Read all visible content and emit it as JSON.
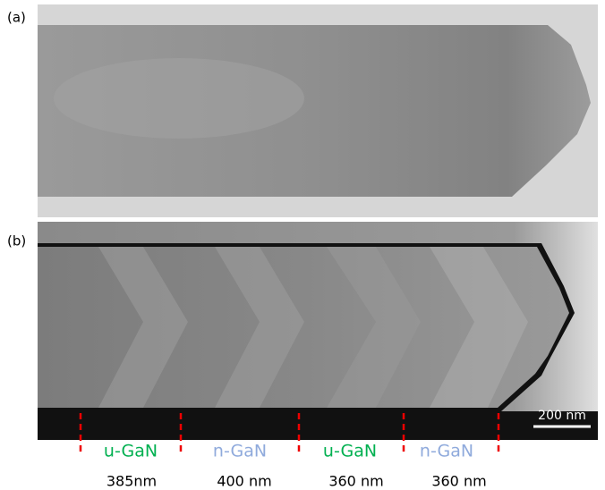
{
  "panels": [
    {
      "label": "(a)"
    },
    {
      "label": "(b)"
    }
  ],
  "scale_bar": "200 nm",
  "segments": [
    {
      "name": "u-GaN",
      "length": "385nm",
      "color": "#00b050"
    },
    {
      "name": "n-GaN",
      "length": "400 nm",
      "color": "#8faadc"
    },
    {
      "name": "u-GaN",
      "length": "360 nm",
      "color": "#00b050"
    },
    {
      "name": "n-GaN",
      "length": "360 nm",
      "color": "#8faadc"
    }
  ]
}
